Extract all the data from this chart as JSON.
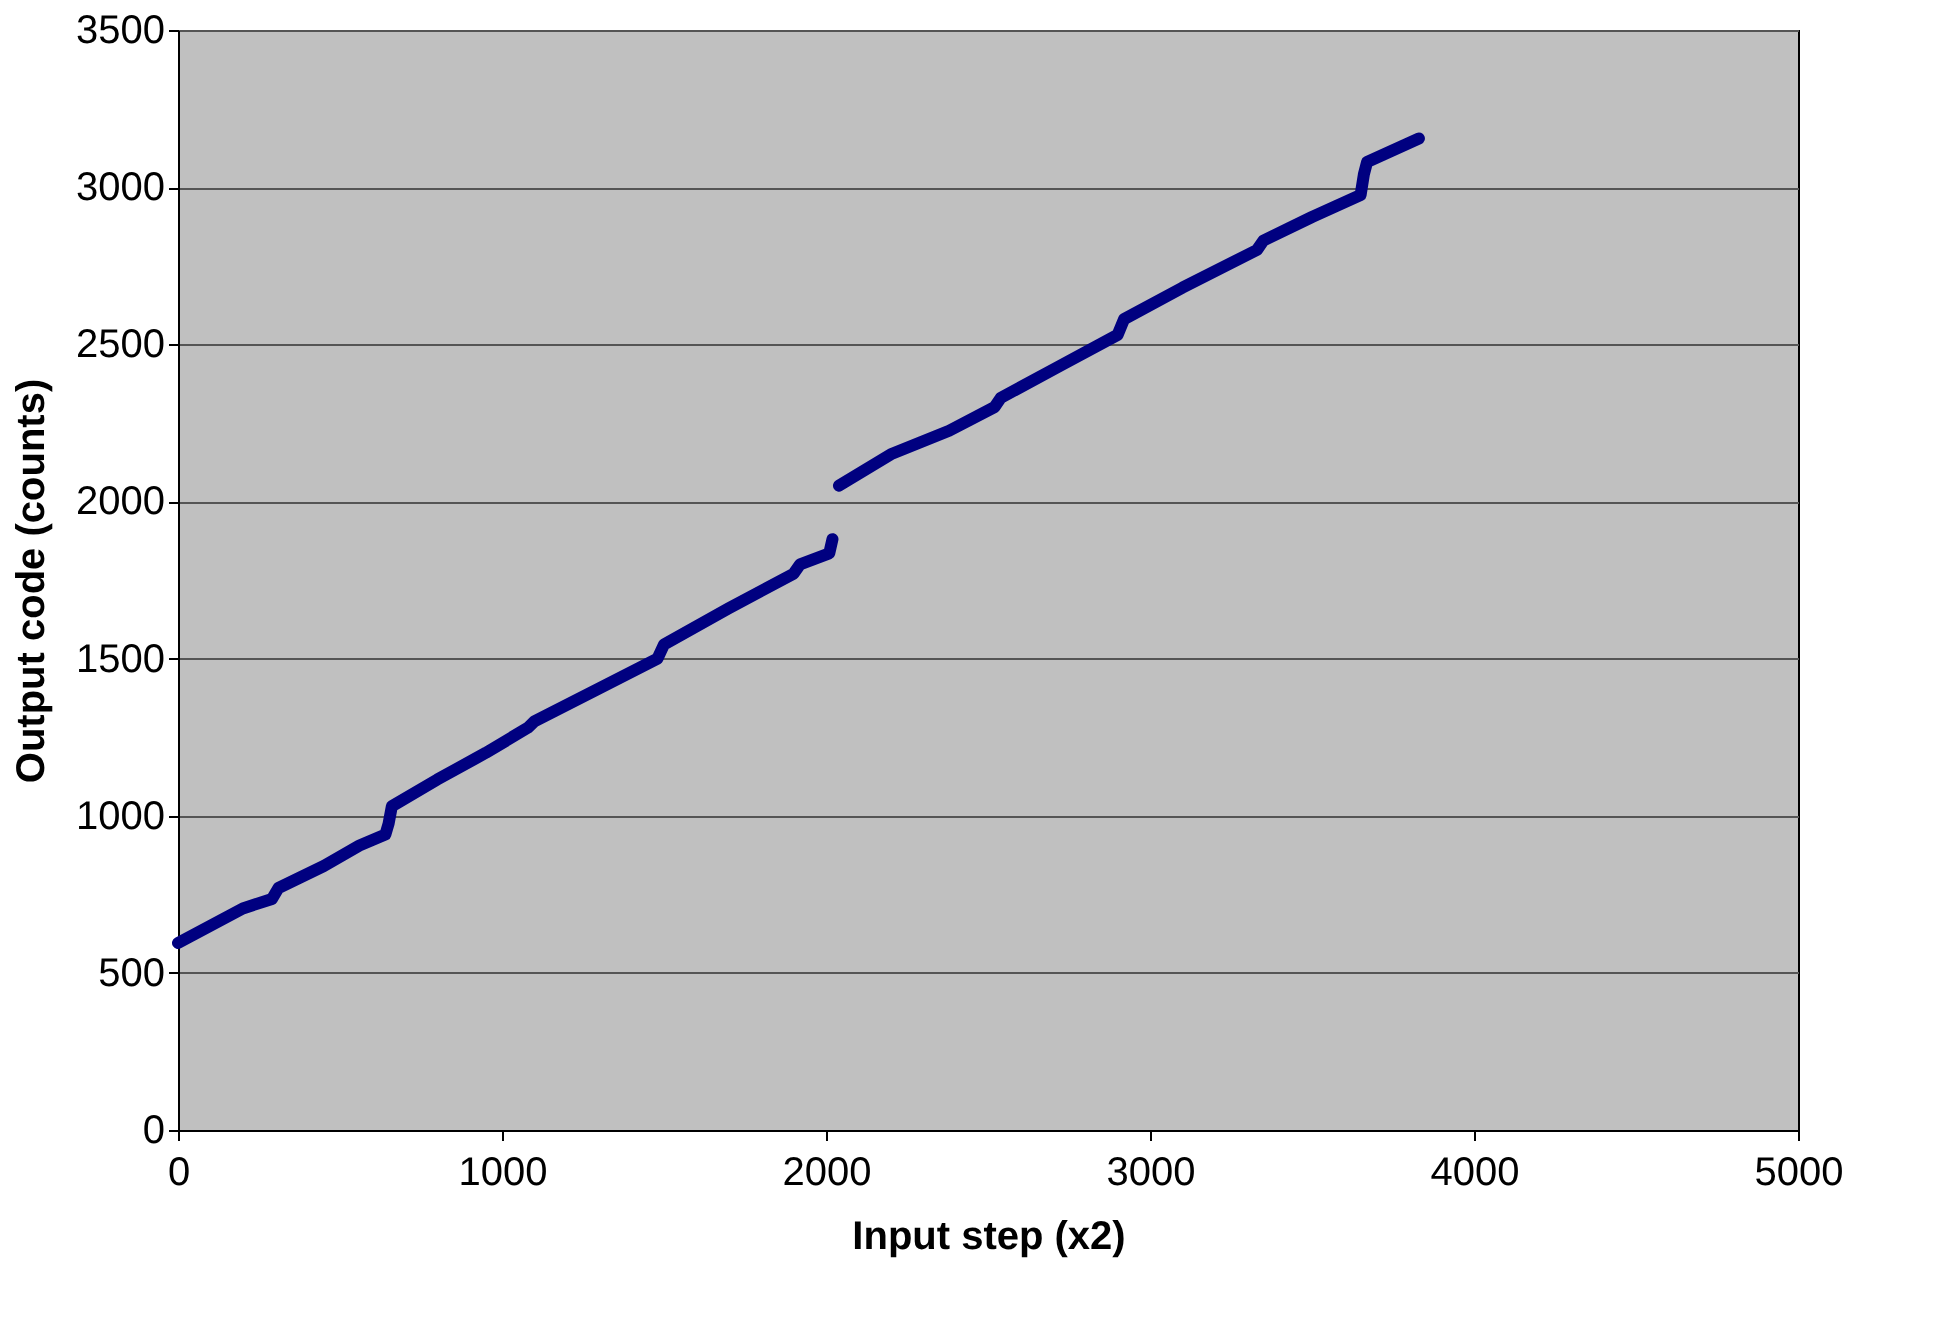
{
  "chart_data": {
    "type": "line",
    "xlabel": "Input step (x2)",
    "ylabel": "Output code (counts)",
    "x": [
      0,
      100,
      200,
      290,
      310,
      450,
      560,
      640,
      650,
      660,
      800,
      950,
      1080,
      1100,
      1300,
      1480,
      1500,
      1700,
      1900,
      1920,
      2010,
      2020,
      2030,
      2040,
      2200,
      2380,
      2520,
      2540,
      2720,
      2900,
      2920,
      3100,
      3330,
      3350,
      3500,
      3650,
      3660,
      3670,
      3830
    ],
    "series": [
      {
        "color": "#000080",
        "values": [
          595,
          650,
          705,
          735,
          770,
          840,
          905,
          940,
          975,
          1030,
          1115,
          1200,
          1280,
          1300,
          1405,
          1500,
          1545,
          1660,
          1770,
          1800,
          1835,
          1880,
          null,
          2050,
          2150,
          2225,
          2300,
          2330,
          2430,
          2530,
          2580,
          2680,
          2800,
          2830,
          2905,
          2975,
          3040,
          3080,
          3155
        ]
      }
    ],
    "xlim": [
      0,
      5000
    ],
    "xticks": [
      0,
      1000,
      2000,
      3000,
      4000,
      5000
    ],
    "ylim": [
      0,
      3500
    ],
    "yticks": [
      0,
      500,
      1000,
      1500,
      2000,
      2500,
      3000,
      3500
    ],
    "grid": "y",
    "marker": "none",
    "line_style": "solid"
  }
}
